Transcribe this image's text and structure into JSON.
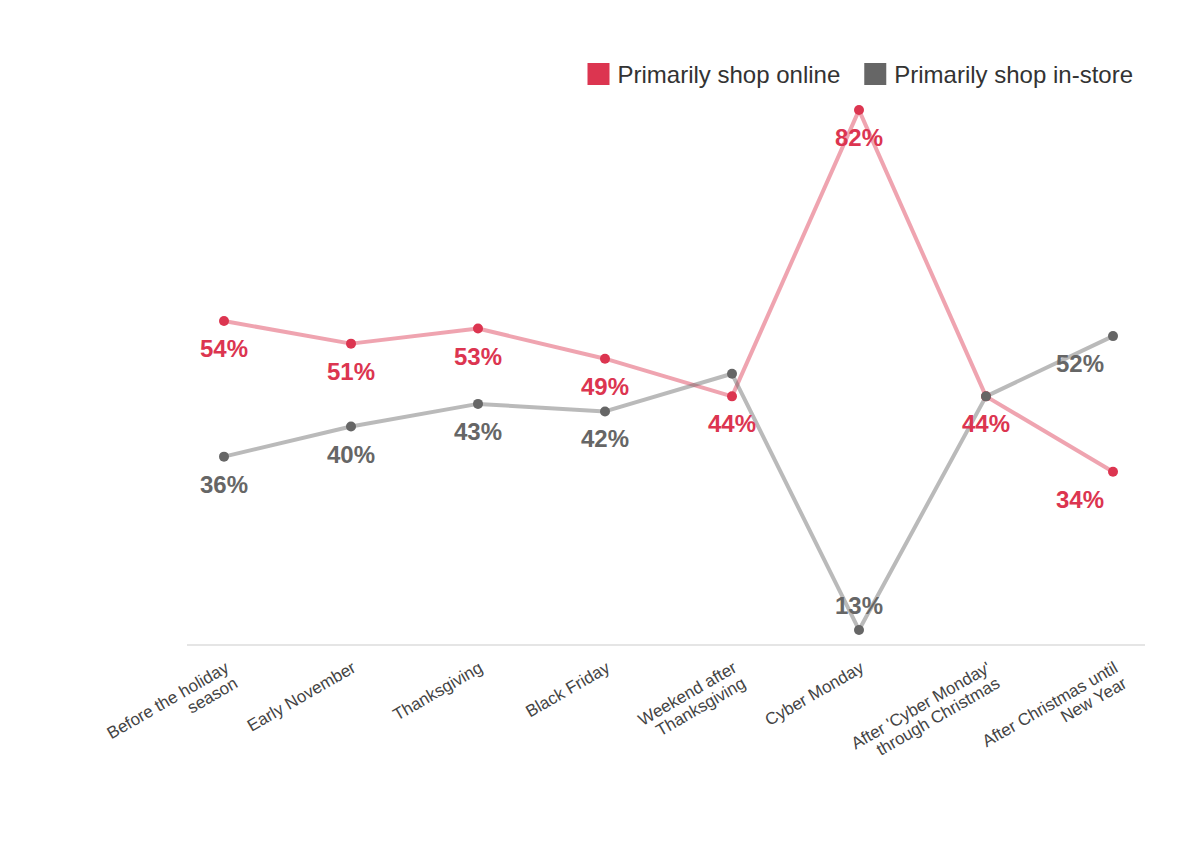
{
  "chart_data": {
    "type": "line",
    "categories": [
      "Before the holiday\nseason",
      "Early November",
      "Thanksgiving",
      "Black Friday",
      "Weekend after\nThanksgiving",
      "Cyber Monday",
      "After 'Cyber Monday'\nthrough Christmas",
      "After Christmas until\nNew Year"
    ],
    "series": [
      {
        "name": "Primarily shop online",
        "color": "#dc3550",
        "marker": "circle",
        "values": [
          54,
          51,
          53,
          49,
          44,
          82,
          44,
          34
        ],
        "value_labels": [
          "54%",
          "51%",
          "53%",
          "49%",
          "44%",
          "82%",
          "44%",
          "34%"
        ]
      },
      {
        "name": "Primarily shop in-store",
        "color": "#666666",
        "marker": "circle",
        "values": [
          36,
          40,
          43,
          42,
          47,
          13,
          44,
          52
        ],
        "value_labels": [
          "36%",
          "40%",
          "43%",
          "42%",
          null,
          "13%",
          null,
          "52%"
        ]
      }
    ],
    "ylim": [
      11,
      84
    ],
    "yticks": [],
    "tick_labels": "x",
    "data_labels": true,
    "legend": "top-right",
    "grid": false
  }
}
